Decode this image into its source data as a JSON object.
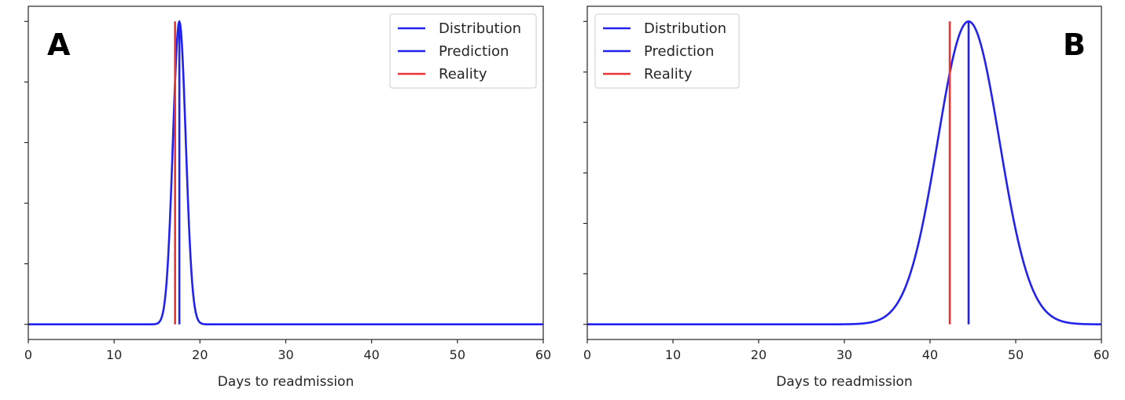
{
  "chart_data": [
    {
      "type": "line",
      "panel_label": "A",
      "xlabel": "Days to readmission",
      "ylabel": "",
      "xlim": [
        0,
        60
      ],
      "ylim": [
        -0.05,
        1.05
      ],
      "xticks": [
        0,
        10,
        20,
        30,
        40,
        50,
        60
      ],
      "yticks": [
        0,
        0.2,
        0.4,
        0.6,
        0.8,
        1.0
      ],
      "y_tick_labels_shown": false,
      "grid": false,
      "legend": {
        "placement": "top-right",
        "entries": [
          {
            "name": "Distribution",
            "color": "#2222ee"
          },
          {
            "name": "Prediction",
            "color": "#2222ee"
          },
          {
            "name": "Reality",
            "color": "#ee3333"
          }
        ]
      },
      "series": [
        {
          "name": "Distribution",
          "kind": "gaussian",
          "mean": 17.6,
          "sd": 0.75,
          "peak": 1.0,
          "color": "#2222ee"
        },
        {
          "name": "Prediction",
          "kind": "vline",
          "x": 17.6,
          "ymin": 0,
          "ymax": 1.0,
          "color": "#2222ee"
        },
        {
          "name": "Reality",
          "kind": "vline",
          "x": 17.1,
          "ymin": 0,
          "ymax": 1.0,
          "color": "#ee3333"
        }
      ]
    },
    {
      "type": "line",
      "panel_label": "B",
      "xlabel": "Days to readmission",
      "ylabel": "",
      "xlim": [
        0,
        60
      ],
      "ylim": [
        -0.05,
        1.05
      ],
      "xticks": [
        0,
        10,
        20,
        30,
        40,
        50,
        60
      ],
      "yticks": [
        0,
        0.167,
        0.333,
        0.5,
        0.667,
        0.833,
        1.0
      ],
      "y_tick_labels_shown": false,
      "grid": false,
      "legend": {
        "placement": "top-left",
        "entries": [
          {
            "name": "Distribution",
            "color": "#2222ee"
          },
          {
            "name": "Prediction",
            "color": "#2222ee"
          },
          {
            "name": "Reality",
            "color": "#ee3333"
          }
        ]
      },
      "series": [
        {
          "name": "Distribution",
          "kind": "gaussian",
          "mean": 44.5,
          "sd": 3.6,
          "peak": 1.0,
          "color": "#2222ee"
        },
        {
          "name": "Prediction",
          "kind": "vline",
          "x": 44.5,
          "ymin": 0,
          "ymax": 1.0,
          "color": "#2222ee"
        },
        {
          "name": "Reality",
          "kind": "vline",
          "x": 42.3,
          "ymin": 0,
          "ymax": 1.0,
          "color": "#ee3333"
        }
      ]
    }
  ]
}
